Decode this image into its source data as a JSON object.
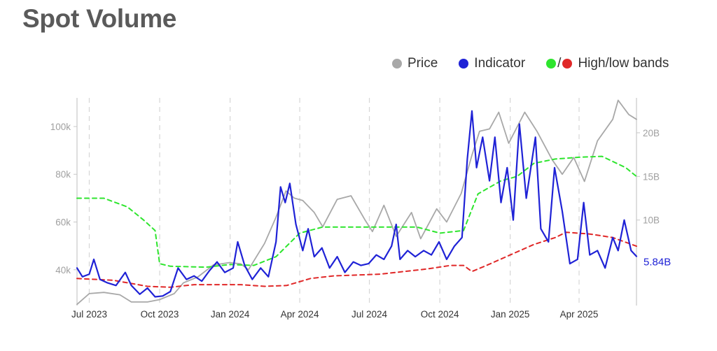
{
  "title": "Spot Volume",
  "legend": {
    "price": "Price",
    "indicator": "Indicator",
    "bands_sep": "/",
    "bands": "High/low bands"
  },
  "colors": {
    "price": "#a8a8a8",
    "indicator": "#1f22d6",
    "high_band": "#2ee52e",
    "low_band": "#e02828",
    "title": "#5a5a5a",
    "axis_text": "#a0a0a0"
  },
  "chart_data": {
    "type": "line",
    "x_range": [
      "2023-06-15",
      "2025-06-15"
    ],
    "x_ticks": [
      {
        "date": "2023-07-01",
        "label": "Jul 2023"
      },
      {
        "date": "2023-10-01",
        "label": "Oct 2023"
      },
      {
        "date": "2024-01-01",
        "label": "Jan 2024"
      },
      {
        "date": "2024-04-01",
        "label": "Apr 2024"
      },
      {
        "date": "2024-07-01",
        "label": "Jul 2024"
      },
      {
        "date": "2024-10-01",
        "label": "Oct 2024"
      },
      {
        "date": "2025-01-01",
        "label": "Jan 2025"
      },
      {
        "date": "2025-04-01",
        "label": "Apr 2025"
      }
    ],
    "y_left": {
      "ticks": [
        40000,
        60000,
        80000,
        100000
      ],
      "tick_labels": [
        "40k",
        "60k",
        "80k",
        "100k"
      ],
      "range": [
        25000,
        112000
      ]
    },
    "y_right": {
      "ticks": [
        10,
        15,
        20
      ],
      "tick_labels": [
        "10B",
        "15B",
        "20B"
      ],
      "unit": "B",
      "range": [
        0.2,
        24
      ]
    },
    "last_value_label": "5.84B",
    "series": [
      {
        "key": "price",
        "axis": "left",
        "values": [
          [
            "2023-06-15",
            25500
          ],
          [
            "2023-07-01",
            30000
          ],
          [
            "2023-07-20",
            30500
          ],
          [
            "2023-08-10",
            29500
          ],
          [
            "2023-08-25",
            26500
          ],
          [
            "2023-09-15",
            26500
          ],
          [
            "2023-10-01",
            27500
          ],
          [
            "2023-10-20",
            30000
          ],
          [
            "2023-11-01",
            34500
          ],
          [
            "2023-11-20",
            37000
          ],
          [
            "2023-12-10",
            42000
          ],
          [
            "2023-12-31",
            43000
          ],
          [
            "2024-01-15",
            42500
          ],
          [
            "2024-01-25",
            40000
          ],
          [
            "2024-02-15",
            51000
          ],
          [
            "2024-03-01",
            62000
          ],
          [
            "2024-03-14",
            73000
          ],
          [
            "2024-03-25",
            70000
          ],
          [
            "2024-04-05",
            69000
          ],
          [
            "2024-04-20",
            64000
          ],
          [
            "2024-05-01",
            58000
          ],
          [
            "2024-05-20",
            69500
          ],
          [
            "2024-06-07",
            71000
          ],
          [
            "2024-06-25",
            61000
          ],
          [
            "2024-07-05",
            56000
          ],
          [
            "2024-07-20",
            67000
          ],
          [
            "2024-08-05",
            54000
          ],
          [
            "2024-08-25",
            64000
          ],
          [
            "2024-09-06",
            53000
          ],
          [
            "2024-09-27",
            65500
          ],
          [
            "2024-10-10",
            60000
          ],
          [
            "2024-10-29",
            72000
          ],
          [
            "2024-11-12",
            88000
          ],
          [
            "2024-11-22",
            98000
          ],
          [
            "2024-12-05",
            99000
          ],
          [
            "2024-12-17",
            106000
          ],
          [
            "2024-12-30",
            93000
          ],
          [
            "2025-01-20",
            106000
          ],
          [
            "2025-02-05",
            98000
          ],
          [
            "2025-02-25",
            86000
          ],
          [
            "2025-03-10",
            80000
          ],
          [
            "2025-03-25",
            87000
          ],
          [
            "2025-04-08",
            77000
          ],
          [
            "2025-04-25",
            94000
          ],
          [
            "2025-05-15",
            103000
          ],
          [
            "2025-05-22",
            111000
          ],
          [
            "2025-06-05",
            105000
          ],
          [
            "2025-06-15",
            103000
          ]
        ]
      },
      {
        "key": "indicator",
        "axis": "right",
        "values": [
          [
            "2023-06-15",
            4.5
          ],
          [
            "2023-06-22",
            3.5
          ],
          [
            "2023-07-01",
            3.8
          ],
          [
            "2023-07-07",
            5.5
          ],
          [
            "2023-07-15",
            3.2
          ],
          [
            "2023-07-25",
            2.8
          ],
          [
            "2023-08-05",
            2.5
          ],
          [
            "2023-08-17",
            4.0
          ],
          [
            "2023-08-25",
            2.5
          ],
          [
            "2023-09-05",
            1.5
          ],
          [
            "2023-09-15",
            2.2
          ],
          [
            "2023-09-25",
            1.2
          ],
          [
            "2023-10-05",
            1.3
          ],
          [
            "2023-10-15",
            1.8
          ],
          [
            "2023-10-25",
            4.5
          ],
          [
            "2023-11-05",
            3.2
          ],
          [
            "2023-11-15",
            3.6
          ],
          [
            "2023-11-25",
            3.0
          ],
          [
            "2023-12-05",
            4.2
          ],
          [
            "2023-12-15",
            5.2
          ],
          [
            "2023-12-25",
            4.0
          ],
          [
            "2024-01-05",
            4.5
          ],
          [
            "2024-01-11",
            7.5
          ],
          [
            "2024-01-20",
            4.8
          ],
          [
            "2024-01-30",
            3.2
          ],
          [
            "2024-02-10",
            4.5
          ],
          [
            "2024-02-20",
            3.5
          ],
          [
            "2024-03-01",
            7.5
          ],
          [
            "2024-03-07",
            13.8
          ],
          [
            "2024-03-13",
            12.0
          ],
          [
            "2024-03-19",
            14.2
          ],
          [
            "2024-03-27",
            9.5
          ],
          [
            "2024-04-05",
            6.5
          ],
          [
            "2024-04-12",
            9.0
          ],
          [
            "2024-04-20",
            5.8
          ],
          [
            "2024-04-30",
            6.8
          ],
          [
            "2024-05-10",
            4.5
          ],
          [
            "2024-05-20",
            5.8
          ],
          [
            "2024-05-30",
            4.0
          ],
          [
            "2024-06-10",
            5.2
          ],
          [
            "2024-06-20",
            4.8
          ],
          [
            "2024-06-30",
            5.0
          ],
          [
            "2024-07-10",
            6.0
          ],
          [
            "2024-07-20",
            5.5
          ],
          [
            "2024-07-30",
            7.0
          ],
          [
            "2024-08-05",
            9.5
          ],
          [
            "2024-08-10",
            5.5
          ],
          [
            "2024-08-20",
            6.5
          ],
          [
            "2024-08-30",
            5.8
          ],
          [
            "2024-09-10",
            6.5
          ],
          [
            "2024-09-20",
            6.0
          ],
          [
            "2024-09-30",
            7.5
          ],
          [
            "2024-10-10",
            5.5
          ],
          [
            "2024-10-20",
            7.0
          ],
          [
            "2024-10-30",
            8.0
          ],
          [
            "2024-11-06",
            17.0
          ],
          [
            "2024-11-12",
            22.5
          ],
          [
            "2024-11-18",
            16.0
          ],
          [
            "2024-11-26",
            19.5
          ],
          [
            "2024-12-05",
            14.5
          ],
          [
            "2024-12-12",
            19.5
          ],
          [
            "2024-12-20",
            12.0
          ],
          [
            "2024-12-28",
            16.0
          ],
          [
            "2025-01-05",
            10.0
          ],
          [
            "2025-01-13",
            21.0
          ],
          [
            "2025-01-22",
            12.5
          ],
          [
            "2025-02-03",
            19.5
          ],
          [
            "2025-02-10",
            9.0
          ],
          [
            "2025-02-20",
            7.5
          ],
          [
            "2025-02-28",
            16.0
          ],
          [
            "2025-03-10",
            11.0
          ],
          [
            "2025-03-20",
            5.0
          ],
          [
            "2025-03-30",
            5.5
          ],
          [
            "2025-04-07",
            12.0
          ],
          [
            "2025-04-15",
            6.0
          ],
          [
            "2025-04-25",
            6.5
          ],
          [
            "2025-05-05",
            4.5
          ],
          [
            "2025-05-15",
            8.0
          ],
          [
            "2025-05-22",
            6.5
          ],
          [
            "2025-05-30",
            10.0
          ],
          [
            "2025-06-08",
            6.5
          ],
          [
            "2025-06-15",
            5.84
          ]
        ]
      },
      {
        "key": "high_band",
        "axis": "right",
        "values": [
          [
            "2023-06-15",
            12.5
          ],
          [
            "2023-07-20",
            12.5
          ],
          [
            "2023-08-20",
            11.5
          ],
          [
            "2023-09-10",
            10.0
          ],
          [
            "2023-09-25",
            8.8
          ],
          [
            "2023-10-01",
            5.0
          ],
          [
            "2023-10-15",
            4.7
          ],
          [
            "2023-12-01",
            4.6
          ],
          [
            "2024-01-01",
            4.9
          ],
          [
            "2024-02-01",
            4.8
          ],
          [
            "2024-03-01",
            5.8
          ],
          [
            "2024-04-01",
            8.5
          ],
          [
            "2024-05-01",
            9.2
          ],
          [
            "2024-06-01",
            9.2
          ],
          [
            "2024-07-01",
            9.2
          ],
          [
            "2024-08-01",
            9.2
          ],
          [
            "2024-09-01",
            9.2
          ],
          [
            "2024-10-01",
            8.5
          ],
          [
            "2024-11-01",
            8.8
          ],
          [
            "2024-11-20",
            13.0
          ],
          [
            "2024-12-20",
            14.5
          ],
          [
            "2025-01-10",
            15.0
          ],
          [
            "2025-02-01",
            16.5
          ],
          [
            "2025-03-01",
            17.0
          ],
          [
            "2025-04-01",
            17.2
          ],
          [
            "2025-05-01",
            17.3
          ],
          [
            "2025-06-01",
            16.0
          ],
          [
            "2025-06-15",
            15.0
          ]
        ]
      },
      {
        "key": "low_band",
        "axis": "right",
        "values": [
          [
            "2023-06-15",
            3.3
          ],
          [
            "2023-08-01",
            3.1
          ],
          [
            "2023-09-15",
            2.4
          ],
          [
            "2023-10-15",
            2.3
          ],
          [
            "2023-11-15",
            2.6
          ],
          [
            "2024-01-15",
            2.6
          ],
          [
            "2024-02-15",
            2.4
          ],
          [
            "2024-03-15",
            2.5
          ],
          [
            "2024-04-15",
            3.3
          ],
          [
            "2024-05-15",
            3.6
          ],
          [
            "2024-07-15",
            3.8
          ],
          [
            "2024-09-15",
            4.4
          ],
          [
            "2024-10-15",
            4.8
          ],
          [
            "2024-11-01",
            4.8
          ],
          [
            "2024-11-12",
            4.1
          ],
          [
            "2024-12-01",
            4.8
          ],
          [
            "2025-01-01",
            6.0
          ],
          [
            "2025-02-01",
            7.2
          ],
          [
            "2025-03-01",
            8.0
          ],
          [
            "2025-03-15",
            8.6
          ],
          [
            "2025-04-15",
            8.4
          ],
          [
            "2025-05-15",
            8.0
          ],
          [
            "2025-06-15",
            7.0
          ]
        ]
      }
    ]
  }
}
